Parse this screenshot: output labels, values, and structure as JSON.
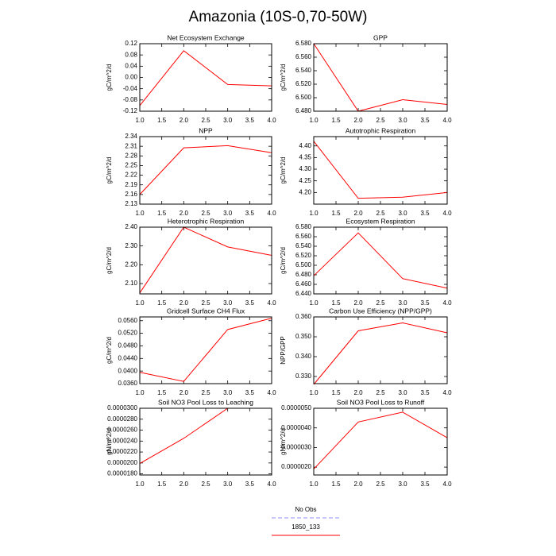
{
  "title": "Amazonia (10S-0,70-50W)",
  "legend": [
    {
      "name": "No Obs",
      "color": "#8f8fff",
      "dashed": true
    },
    {
      "name": "1850_133",
      "color": "#ff0000"
    }
  ],
  "chart_data": [
    {
      "type": "line",
      "title": "Net Ecosystem Exchange",
      "y_label": "gC/m^2/d",
      "color": "#ff0000",
      "x": [
        1,
        2,
        3,
        4
      ],
      "values": [
        -0.1,
        0.095,
        -0.025,
        -0.03
      ],
      "xlim": [
        1,
        4
      ],
      "xticks": [
        {
          "value": 1,
          "label": "1.0"
        },
        {
          "value": 1.5,
          "label": "1.5"
        },
        {
          "value": 2,
          "label": "2.0"
        },
        {
          "value": 2.5,
          "label": "2.5"
        },
        {
          "value": 3,
          "label": "3.0"
        },
        {
          "value": 3.5,
          "label": "3.5"
        },
        {
          "value": 4,
          "label": "4.0"
        }
      ],
      "ylim": [
        -0.12,
        0.12
      ],
      "yticks": [
        -0.12,
        -0.08,
        -0.04,
        {
          "value": 0,
          "label": "0.00"
        },
        0.04,
        0.08,
        0.12
      ]
    },
    {
      "type": "line",
      "title": "GPP",
      "y_label": "gC/m^2/d",
      "color": "#ff0000",
      "x": [
        1,
        2,
        3,
        4
      ],
      "values": [
        6.58,
        6.48,
        6.497,
        6.49
      ],
      "xlim": [
        1,
        4
      ],
      "xticks": [
        {
          "value": 1,
          "label": "1.0"
        },
        {
          "value": 1.5,
          "label": "1.5"
        },
        {
          "value": 2,
          "label": "2.0"
        },
        {
          "value": 2.5,
          "label": "2.5"
        },
        {
          "value": 3,
          "label": "3.0"
        },
        {
          "value": 3.5,
          "label": "3.5"
        },
        {
          "value": 4,
          "label": "4.0"
        }
      ],
      "ylim": [
        6.48,
        6.58
      ],
      "yticks": [
        {
          "value": 6.48,
          "label": "6.480"
        },
        {
          "value": 6.5,
          "label": "6.500"
        },
        {
          "value": 6.52,
          "label": "6.520"
        },
        {
          "value": 6.54,
          "label": "6.540"
        },
        {
          "value": 6.56,
          "label": "6.560"
        },
        {
          "value": 6.58,
          "label": "6.580"
        }
      ]
    },
    {
      "type": "line",
      "title": "NPP",
      "y_label": "gC/m^2/d",
      "color": "#ff0000",
      "x": [
        1,
        2,
        3,
        4
      ],
      "values": [
        2.16,
        2.305,
        2.312,
        2.29
      ],
      "xlim": [
        1,
        4
      ],
      "xticks": [
        {
          "value": 1,
          "label": "1.0"
        },
        {
          "value": 1.5,
          "label": "1.5"
        },
        {
          "value": 2,
          "label": "2.0"
        },
        {
          "value": 2.5,
          "label": "2.5"
        },
        {
          "value": 3,
          "label": "3.0"
        },
        {
          "value": 3.5,
          "label": "3.5"
        },
        {
          "value": 4,
          "label": "4.0"
        }
      ],
      "ylim": [
        2.13,
        2.34
      ],
      "yticks": [
        2.13,
        2.16,
        2.19,
        2.22,
        2.25,
        2.28,
        2.31,
        2.34
      ]
    },
    {
      "type": "line",
      "title": "Autotrophic Respiration",
      "y_label": "gC/m^2/d",
      "color": "#ff0000",
      "x": [
        1,
        2,
        3,
        4
      ],
      "values": [
        4.42,
        4.175,
        4.18,
        4.2
      ],
      "xlim": [
        1,
        4
      ],
      "xticks": [
        {
          "value": 1,
          "label": "1.0"
        },
        {
          "value": 1.5,
          "label": "1.5"
        },
        {
          "value": 2,
          "label": "2.0"
        },
        {
          "value": 2.5,
          "label": "2.5"
        },
        {
          "value": 3,
          "label": "3.0"
        },
        {
          "value": 3.5,
          "label": "3.5"
        },
        {
          "value": 4,
          "label": "4.0"
        }
      ],
      "ylim": [
        4.15,
        4.44
      ],
      "yticks": [
        {
          "value": 4.2,
          "label": "4.20"
        },
        4.25,
        {
          "value": 4.3,
          "label": "4.30"
        },
        4.35,
        {
          "value": 4.4,
          "label": "4.40"
        }
      ]
    },
    {
      "type": "line",
      "title": "Heterotrophic Respiration",
      "y_label": "gC/m^2/d",
      "color": "#ff0000",
      "x": [
        1,
        2,
        3,
        4
      ],
      "values": [
        2.05,
        2.4,
        2.295,
        2.25
      ],
      "xlim": [
        1,
        4
      ],
      "xticks": [
        {
          "value": 1,
          "label": "1.0"
        },
        {
          "value": 1.5,
          "label": "1.5"
        },
        {
          "value": 2,
          "label": "2.0"
        },
        {
          "value": 2.5,
          "label": "2.5"
        },
        {
          "value": 3,
          "label": "3.0"
        },
        {
          "value": 3.5,
          "label": "3.5"
        },
        {
          "value": 4,
          "label": "4.0"
        }
      ],
      "ylim": [
        2.045,
        2.4
      ],
      "yticks": [
        {
          "value": 2.1,
          "label": "2.10"
        },
        {
          "value": 2.2,
          "label": "2.20"
        },
        {
          "value": 2.3,
          "label": "2.30"
        },
        {
          "value": 2.4,
          "label": "2.40"
        }
      ]
    },
    {
      "type": "line",
      "title": "Ecosystem Respiration",
      "y_label": "gC/m^2/d",
      "color": "#ff0000",
      "x": [
        1,
        2,
        3,
        4
      ],
      "values": [
        6.478,
        6.568,
        6.472,
        6.452
      ],
      "xlim": [
        1,
        4
      ],
      "xticks": [
        {
          "value": 1,
          "label": "1.0"
        },
        {
          "value": 1.5,
          "label": "1.5"
        },
        {
          "value": 2,
          "label": "2.0"
        },
        {
          "value": 2.5,
          "label": "2.5"
        },
        {
          "value": 3,
          "label": "3.0"
        },
        {
          "value": 3.5,
          "label": "3.5"
        },
        {
          "value": 4,
          "label": "4.0"
        }
      ],
      "ylim": [
        6.44,
        6.58
      ],
      "yticks": [
        {
          "value": 6.44,
          "label": "6.440"
        },
        {
          "value": 6.46,
          "label": "6.460"
        },
        {
          "value": 6.48,
          "label": "6.480"
        },
        {
          "value": 6.5,
          "label": "6.500"
        },
        {
          "value": 6.52,
          "label": "6.520"
        },
        {
          "value": 6.54,
          "label": "6.540"
        },
        {
          "value": 6.56,
          "label": "6.560"
        },
        {
          "value": 6.58,
          "label": "6.580"
        }
      ]
    },
    {
      "type": "line",
      "title": "Gridcell Surface CH4 Flux",
      "y_label": "gC/m^2/d",
      "color": "#ff0000",
      "x": [
        1,
        2,
        3,
        4
      ],
      "values": [
        0.0396,
        0.0367,
        0.0532,
        0.0568
      ],
      "xlim": [
        1,
        4
      ],
      "xticks": [
        {
          "value": 1,
          "label": "1.0"
        },
        {
          "value": 1.5,
          "label": "1.5"
        },
        {
          "value": 2,
          "label": "2.0"
        },
        {
          "value": 2.5,
          "label": "2.5"
        },
        {
          "value": 3,
          "label": "3.0"
        },
        {
          "value": 3.5,
          "label": "3.5"
        },
        {
          "value": 4,
          "label": "4.0"
        }
      ],
      "ylim": [
        0.036,
        0.0572
      ],
      "yticks": [
        {
          "value": 0.036,
          "label": "0.0360"
        },
        {
          "value": 0.04,
          "label": "0.0400"
        },
        {
          "value": 0.044,
          "label": "0.0440"
        },
        {
          "value": 0.048,
          "label": "0.0480"
        },
        {
          "value": 0.052,
          "label": "0.0520"
        },
        {
          "value": 0.056,
          "label": "0.0560"
        }
      ]
    },
    {
      "type": "line",
      "title": "Carbon Use Efficiency (NPP/GPP)",
      "y_label": "NPP/GPP",
      "color": "#ff0000",
      "x": [
        1,
        2,
        3,
        4
      ],
      "values": [
        0.326,
        0.353,
        0.357,
        0.352
      ],
      "xlim": [
        1,
        4
      ],
      "xticks": [
        {
          "value": 1,
          "label": "1.0"
        },
        {
          "value": 1.5,
          "label": "1.5"
        },
        {
          "value": 2,
          "label": "2.0"
        },
        {
          "value": 2.5,
          "label": "2.5"
        },
        {
          "value": 3,
          "label": "3.0"
        },
        {
          "value": 3.5,
          "label": "3.5"
        },
        {
          "value": 4,
          "label": "4.0"
        }
      ],
      "ylim": [
        0.3264,
        0.36
      ],
      "yticks": [
        {
          "value": 0.33,
          "label": "0.330"
        },
        {
          "value": 0.34,
          "label": "0.340"
        },
        {
          "value": 0.35,
          "label": "0.350"
        },
        {
          "value": 0.36,
          "label": "0.360"
        }
      ]
    },
    {
      "type": "line",
      "title": "Soil NO3 Pool Loss to Leaching",
      "y_label": "gN/m^2/d",
      "color": "#ff0000",
      "x": [
        1,
        2,
        3,
        4
      ],
      "values": [
        1.99e-05,
        2.45e-05,
        3e-05,
        3e-05
      ],
      "xlim": [
        1,
        4
      ],
      "xticks": [
        {
          "value": 1,
          "label": "1.0"
        },
        {
          "value": 1.5,
          "label": "1.5"
        },
        {
          "value": 2,
          "label": "2.0"
        },
        {
          "value": 2.5,
          "label": "2.5"
        },
        {
          "value": 3,
          "label": "3.0"
        },
        {
          "value": 3.5,
          "label": "3.5"
        },
        {
          "value": 4,
          "label": "4.0"
        }
      ],
      "ylim": [
        1.78e-05,
        3e-05
      ],
      "yticks": [
        {
          "value": 1.8e-05,
          "label": "0.0000180"
        },
        {
          "value": 2e-05,
          "label": "0.0000200"
        },
        {
          "value": 2.2e-05,
          "label": "0.0000220"
        },
        {
          "value": 2.4e-05,
          "label": "0.0000240"
        },
        {
          "value": 2.6e-05,
          "label": "0.0000260"
        },
        {
          "value": 2.8e-05,
          "label": "0.0000280"
        },
        {
          "value": 3e-05,
          "label": "0.0000300"
        }
      ]
    },
    {
      "type": "line",
      "title": "Soil NO3 Pool Loss to Runoff",
      "y_label": "gN/m^2/d",
      "color": "#ff0000",
      "x": [
        1,
        2,
        3,
        4
      ],
      "values": [
        1.9e-06,
        4.3e-06,
        4.8e-06,
        3.5e-06
      ],
      "xlim": [
        1,
        4
      ],
      "xticks": [
        {
          "value": 1,
          "label": "1.0"
        },
        {
          "value": 1.5,
          "label": "1.5"
        },
        {
          "value": 2,
          "label": "2.0"
        },
        {
          "value": 2.5,
          "label": "2.5"
        },
        {
          "value": 3,
          "label": "3.0"
        },
        {
          "value": 3.5,
          "label": "3.5"
        },
        {
          "value": 4,
          "label": "4.0"
        }
      ],
      "ylim": [
        1.6e-06,
        5e-06
      ],
      "yticks": [
        {
          "value": 2e-06,
          "label": "0.0000020"
        },
        {
          "value": 3e-06,
          "label": "0.0000030"
        },
        {
          "value": 4e-06,
          "label": "0.0000040"
        },
        {
          "value": 5e-06,
          "label": "0.0000050"
        }
      ]
    }
  ]
}
